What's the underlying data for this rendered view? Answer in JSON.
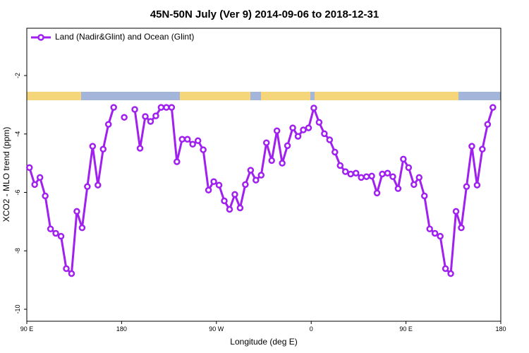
{
  "chart_data": {
    "type": "line",
    "title": "45N-50N July (Ver 9)   2014-09-06 to 2018-12-31",
    "x_label": "Longitude (deg E)",
    "y_label": "XCO2 - MLO trend (ppm)",
    "x": [
      92.5,
      97.5,
      102.5,
      107.5,
      112.5,
      117.5,
      122.5,
      127.5,
      132.5,
      137.5,
      142.5,
      147.5,
      152.5,
      157.5,
      162.5,
      167.5,
      172.5,
      177.5,
      182.5,
      187.5,
      192.5,
      197.5,
      202.5,
      207.5,
      212.5,
      217.5,
      222.5,
      227.5,
      232.5,
      237.5,
      242.5,
      247.5,
      252.5,
      257.5,
      262.5,
      267.5,
      272.5,
      277.5,
      282.5,
      287.5,
      292.5,
      297.5,
      302.5,
      307.5,
      312.5,
      317.5,
      322.5,
      327.5,
      332.5,
      337.5,
      342.5,
      347.5,
      352.5,
      357.5,
      362.5,
      367.5,
      372.5,
      377.5,
      382.5,
      387.5,
      392.5,
      397.5,
      402.5,
      407.5,
      412.5,
      417.5,
      422.5,
      427.5,
      432.5,
      437.5,
      442.5,
      447.5,
      452.5,
      457.5,
      462.5,
      467.5,
      472.5,
      477.5,
      482.5,
      487.5,
      492.5,
      497.5,
      502.5,
      507.5,
      512.5,
      517.5,
      522.5,
      527.5,
      532.5
    ],
    "series": [
      {
        "name": "Land (Nadir&Glint) and Ocean (Glint)",
        "color": "#a020f0",
        "values": [
          -5.15,
          -5.73,
          -5.49,
          -6.12,
          -7.25,
          -7.4,
          -7.5,
          -8.61,
          -8.78,
          -6.65,
          -7.21,
          -5.8,
          -4.42,
          -5.75,
          -4.52,
          -3.67,
          -3.09,
          null,
          -3.43,
          null,
          -3.16,
          -4.49,
          -3.4,
          -3.57,
          -3.38,
          -3.09,
          -3.09,
          -3.09,
          -4.95,
          -4.18,
          -4.18,
          -4.35,
          -4.23,
          -4.54,
          -5.92,
          -5.63,
          -5.75,
          -6.29,
          -6.58,
          -6.07,
          -6.53,
          -5.73,
          -5.24,
          -5.58,
          -5.41,
          -4.3,
          -4.91,
          -3.89,
          -5.0,
          -4.4,
          -3.79,
          -4.08,
          -3.86,
          -3.79,
          -3.11,
          -3.6,
          -3.99,
          -4.2,
          -4.62,
          -5.08,
          -5.29,
          -5.37,
          -5.34,
          -5.49,
          -5.46,
          -5.44,
          -6.02,
          -5.37,
          -5.34,
          -5.46,
          -5.87,
          -4.86,
          -5.15,
          -5.73,
          -5.49,
          -6.12,
          -7.25,
          -7.4,
          -7.5,
          -8.61,
          -8.78,
          -6.65,
          -7.21,
          -5.8,
          -4.42,
          -5.75,
          -4.52,
          -3.67,
          -3.09
        ]
      }
    ],
    "xlim": [
      90,
      540
    ],
    "xticks": [
      {
        "value": 90,
        "label": "90 E"
      },
      {
        "value": 180,
        "label": "180"
      },
      {
        "value": 270,
        "label": "90 W"
      },
      {
        "value": 360,
        "label": "0"
      },
      {
        "value": 450,
        "label": "90 E"
      },
      {
        "value": 540,
        "label": "180"
      }
    ],
    "ylim": [
      -10.41,
      -0.38
    ],
    "yticks": [
      -2,
      -4,
      -6,
      -8,
      -10
    ],
    "legend": "top-left"
  }
}
